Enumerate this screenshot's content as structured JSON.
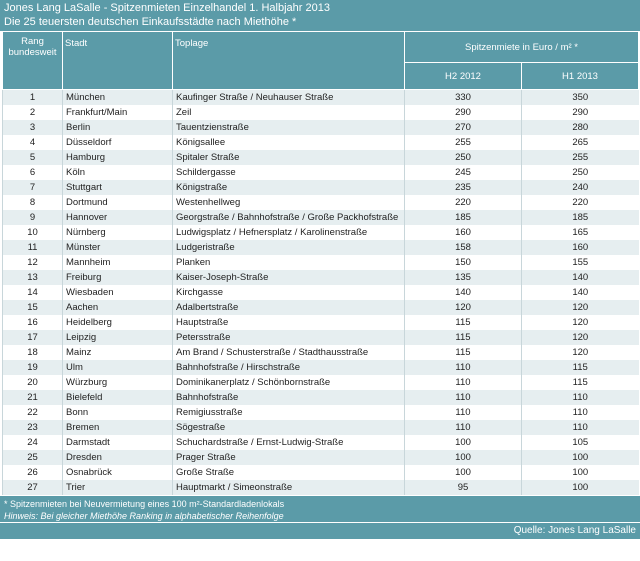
{
  "header": {
    "title": "Jones Lang LaSalle - Spitzenmieten Einzelhandel 1. Halbjahr 2013",
    "subtitle": "Die 25 teuersten deutschen Einkaufsstädte nach Miethöhe *"
  },
  "table": {
    "columns": {
      "rank": "Rang bundesweit",
      "city": "Stadt",
      "location": "Toplage",
      "rent_group": "Spitzenmiete in Euro / m² *",
      "h2_2012": "H2 2012",
      "h1_2013": "H1 2013"
    },
    "rows": [
      [
        1,
        "München",
        "Kaufinger Straße / Neuhauser Straße",
        330,
        350
      ],
      [
        2,
        "Frankfurt/Main",
        "Zeil",
        290,
        290
      ],
      [
        3,
        "Berlin",
        "Tauentzienstraße",
        270,
        280
      ],
      [
        4,
        "Düsseldorf",
        "Königsallee",
        255,
        265
      ],
      [
        5,
        "Hamburg",
        "Spitaler Straße",
        250,
        255
      ],
      [
        6,
        "Köln",
        "Schildergasse",
        245,
        250
      ],
      [
        7,
        "Stuttgart",
        "Königstraße",
        235,
        240
      ],
      [
        8,
        "Dortmund",
        "Westenhellweg",
        220,
        220
      ],
      [
        9,
        "Hannover",
        "Georgstraße / Bahnhofstraße / Große Packhofstraße",
        185,
        185
      ],
      [
        10,
        "Nürnberg",
        "Ludwigsplatz / Hefnersplatz / Karolinenstraße",
        160,
        165
      ],
      [
        11,
        "Münster",
        "Ludgeristraße",
        158,
        160
      ],
      [
        12,
        "Mannheim",
        "Planken",
        150,
        155
      ],
      [
        13,
        "Freiburg",
        "Kaiser-Joseph-Straße",
        135,
        140
      ],
      [
        14,
        "Wiesbaden",
        "Kirchgasse",
        140,
        140
      ],
      [
        15,
        "Aachen",
        "Adalbertstraße",
        120,
        120
      ],
      [
        16,
        "Heidelberg",
        "Hauptstraße",
        115,
        120
      ],
      [
        17,
        "Leipzig",
        "Petersstraße",
        115,
        120
      ],
      [
        18,
        "Mainz",
        "Am Brand / Schusterstraße / Stadthausstraße",
        115,
        120
      ],
      [
        19,
        "Ulm",
        "Bahnhofstraße / Hirschstraße",
        110,
        115
      ],
      [
        20,
        "Würzburg",
        "Dominikanerplatz / Schönbornstraße",
        110,
        115
      ],
      [
        21,
        "Bielefeld",
        "Bahnhofstraße",
        110,
        110
      ],
      [
        22,
        "Bonn",
        "Remigiusstraße",
        110,
        110
      ],
      [
        23,
        "Bremen",
        "Sögestraße",
        110,
        110
      ],
      [
        24,
        "Darmstadt",
        "Schuchardstraße / Ernst-Ludwig-Straße",
        100,
        105
      ],
      [
        25,
        "Dresden",
        "Prager Straße",
        100,
        100
      ],
      [
        26,
        "Osnabrück",
        "Große Straße",
        100,
        100
      ],
      [
        27,
        "Trier",
        "Hauptmarkt / Simeonstraße",
        95,
        100
      ]
    ]
  },
  "footer": {
    "note": "* Spitzenmieten bei Neuvermietung eines 100 m²-Standardladenlokals",
    "hint": "Hinweis: Bei gleicher Miethöhe Ranking in alphabetischer Reihenfolge",
    "source": "Quelle:  Jones Lang LaSalle"
  }
}
